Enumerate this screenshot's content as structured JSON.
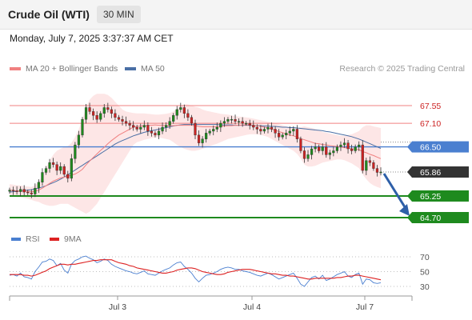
{
  "header": {
    "instrument": "Crude Oil (WTI)",
    "interval": "30 MIN",
    "timestamp": "Monday, July 7, 2025 3:37:37 AM CET"
  },
  "legend": {
    "ma20": "MA 20 + Bollinger Bands",
    "ma50": "MA 50",
    "copyright": "Research © 2025 Trading Central"
  },
  "rsi_legend": {
    "rsi": "RSI",
    "ma": "9MA"
  },
  "colors": {
    "ma20": "#f08080",
    "bollinger_fill": "#fde2e2",
    "ma50": "#4a6fa5",
    "resistance": "#f08080",
    "pivot": "#4a7fd0",
    "support": "#1e8a1e",
    "current": "#333333",
    "up_candle": "#1e8a1e",
    "down_candle": "#cc2222",
    "arrow": "#2e5fa8",
    "rsi": "#4a7fd0",
    "rsi_ma": "#dd2222"
  },
  "chart_data": [
    {
      "type": "candlestick",
      "title": "Crude Oil (WTI)",
      "x_tick_labels": [
        "Jul 3",
        "Jul 4",
        "Jul 7"
      ],
      "ylim": [
        64.5,
        67.8
      ],
      "levels": [
        {
          "value": 67.55,
          "label": "67.55",
          "kind": "resistance"
        },
        {
          "value": 67.1,
          "label": "67.10",
          "kind": "resistance"
        },
        {
          "value": 66.5,
          "label": "66.50",
          "kind": "pivot"
        },
        {
          "value": 65.86,
          "label": "65.86",
          "kind": "current"
        },
        {
          "value": 65.25,
          "label": "65.25",
          "kind": "support"
        },
        {
          "value": 64.7,
          "label": "64.70",
          "kind": "support"
        }
      ],
      "close": [
        65.4,
        65.38,
        65.36,
        65.42,
        65.35,
        65.33,
        65.3,
        65.45,
        65.6,
        65.85,
        65.95,
        66.1,
        66.05,
        65.9,
        66.0,
        65.8,
        65.7,
        66.2,
        66.55,
        66.8,
        67.2,
        67.5,
        67.4,
        67.3,
        67.2,
        67.35,
        67.5,
        67.45,
        67.35,
        67.25,
        67.2,
        67.15,
        67.1,
        67.05,
        67.0,
        66.95,
        67.0,
        67.05,
        66.9,
        66.85,
        66.8,
        66.9,
        67.0,
        67.05,
        67.15,
        67.3,
        67.45,
        67.5,
        67.35,
        67.25,
        67.1,
        66.8,
        66.6,
        66.7,
        66.85,
        66.9,
        66.95,
        67.0,
        67.1,
        67.15,
        67.2,
        67.2,
        67.15,
        67.15,
        67.1,
        67.1,
        67.05,
        67.0,
        66.95,
        66.9,
        66.95,
        67.0,
        66.95,
        66.85,
        66.75,
        66.8,
        66.85,
        66.9,
        66.95,
        66.7,
        66.4,
        66.2,
        66.3,
        66.45,
        66.5,
        66.4,
        66.5,
        66.3,
        66.35,
        66.4,
        66.5,
        66.55,
        66.6,
        66.45,
        66.4,
        66.5,
        66.55,
        65.9,
        66.15,
        66.1,
        65.95,
        65.85,
        65.86
      ],
      "ma20": [
        65.4,
        65.39,
        65.38,
        65.38,
        65.37,
        65.37,
        65.36,
        65.37,
        65.4,
        65.45,
        65.51,
        65.57,
        65.63,
        65.67,
        65.71,
        65.73,
        65.75,
        65.78,
        65.81,
        65.86,
        65.93,
        66.04,
        66.14,
        66.23,
        66.32,
        66.41,
        66.49,
        66.58,
        66.66,
        66.73,
        66.8,
        66.85,
        66.9,
        66.95,
        67.0,
        67.02,
        67.03,
        67.04,
        67.05,
        67.05,
        67.06,
        67.05,
        67.05,
        67.04,
        67.04,
        67.04,
        67.05,
        67.05,
        67.05,
        67.05,
        67.05,
        67.04,
        67.02,
        67.01,
        67.01,
        67.01,
        67.01,
        67.01,
        67.02,
        67.03,
        67.04,
        67.04,
        67.05,
        67.05,
        67.06,
        67.06,
        67.06,
        67.05,
        67.04,
        67.02,
        67.0,
        66.98,
        66.95,
        66.92,
        66.89,
        66.86,
        66.83,
        66.8,
        66.78,
        66.75,
        66.71,
        66.68,
        66.65,
        66.62,
        66.59,
        66.58,
        66.56,
        66.55,
        66.53,
        66.52,
        66.51,
        66.5,
        66.48,
        66.47,
        66.45,
        66.44,
        66.43,
        66.38,
        66.35,
        66.31,
        66.28,
        66.24,
        66.2
      ],
      "bollinger_upper": [
        65.55,
        65.54,
        65.52,
        65.52,
        65.5,
        65.49,
        65.48,
        65.52,
        65.6,
        65.75,
        65.95,
        66.15,
        66.3,
        66.4,
        66.45,
        66.5,
        66.52,
        66.6,
        66.75,
        66.95,
        67.2,
        67.5,
        67.7,
        67.8,
        67.85,
        67.85,
        67.85,
        67.82,
        67.75,
        67.65,
        67.55,
        67.45,
        67.4,
        67.38,
        67.36,
        67.35,
        67.35,
        67.35,
        67.34,
        67.33,
        67.32,
        67.32,
        67.33,
        67.34,
        67.36,
        67.4,
        67.48,
        67.55,
        67.58,
        67.58,
        67.55,
        67.52,
        67.5,
        67.45,
        67.42,
        67.4,
        67.38,
        67.36,
        67.34,
        67.33,
        67.32,
        67.3,
        67.28,
        67.27,
        67.26,
        67.25,
        67.24,
        67.22,
        67.2,
        67.18,
        67.16,
        67.14,
        67.12,
        67.1,
        67.08,
        67.05,
        67.02,
        67.0,
        66.98,
        66.98,
        67.0,
        67.02,
        67.0,
        66.98,
        66.96,
        66.92,
        66.88,
        66.86,
        66.84,
        66.82,
        66.8,
        66.78,
        66.78,
        66.8,
        66.82,
        66.86,
        66.9,
        67.0,
        67.05,
        67.05,
        67.02,
        67.0,
        66.98
      ],
      "bollinger_lower": [
        65.25,
        65.24,
        65.22,
        65.22,
        65.2,
        65.18,
        65.15,
        65.12,
        65.1,
        65.05,
        65.02,
        65.0,
        65.0,
        65.02,
        65.05,
        65.05,
        65.05,
        65.0,
        64.95,
        64.9,
        64.85,
        64.8,
        64.85,
        64.95,
        65.05,
        65.2,
        65.35,
        65.5,
        65.65,
        65.8,
        65.95,
        66.1,
        66.25,
        66.4,
        66.55,
        66.62,
        66.65,
        66.68,
        66.7,
        66.72,
        66.74,
        66.74,
        66.72,
        66.7,
        66.68,
        66.62,
        66.55,
        66.5,
        66.45,
        66.42,
        66.4,
        66.4,
        66.42,
        66.45,
        66.48,
        66.52,
        66.55,
        66.58,
        66.62,
        66.66,
        66.7,
        66.72,
        66.74,
        66.76,
        66.78,
        66.8,
        66.82,
        66.82,
        66.82,
        66.8,
        66.78,
        66.75,
        66.7,
        66.65,
        66.6,
        66.55,
        66.5,
        66.45,
        66.4,
        66.32,
        66.2,
        66.05,
        66.0,
        66.0,
        66.02,
        66.06,
        66.1,
        66.12,
        66.14,
        66.16,
        66.18,
        66.18,
        66.16,
        66.12,
        66.08,
        66.02,
        65.96,
        65.8,
        65.68,
        65.58,
        65.52,
        65.48,
        65.45
      ],
      "ma50": [
        65.35,
        65.36,
        65.37,
        65.38,
        65.39,
        65.4,
        65.41,
        65.43,
        65.45,
        65.48,
        65.51,
        65.55,
        65.59,
        65.63,
        65.68,
        65.73,
        65.79,
        65.85,
        65.91,
        65.97,
        66.03,
        66.09,
        66.15,
        66.21,
        66.27,
        66.33,
        66.39,
        66.45,
        66.51,
        66.57,
        66.62,
        66.66,
        66.7,
        66.74,
        66.78,
        66.81,
        66.84,
        66.87,
        66.89,
        66.91,
        66.93,
        66.95,
        66.97,
        66.99,
        67.01,
        67.03,
        67.05,
        67.06,
        67.07,
        67.07,
        67.07,
        67.07,
        67.07,
        67.07,
        67.07,
        67.07,
        67.07,
        67.07,
        67.06,
        67.06,
        67.06,
        67.06,
        67.05,
        67.05,
        67.05,
        67.05,
        67.05,
        67.04,
        67.04,
        67.04,
        67.03,
        67.03,
        67.02,
        67.02,
        67.01,
        67.0,
        67.0,
        66.99,
        66.99,
        66.98,
        66.97,
        66.96,
        66.95,
        66.94,
        66.93,
        66.92,
        66.91,
        66.89,
        66.88,
        66.86,
        66.84,
        66.82,
        66.8,
        66.78,
        66.76,
        66.73,
        66.7,
        66.66,
        66.62,
        66.58,
        66.54,
        66.5,
        66.46
      ]
    },
    {
      "type": "line",
      "title": "RSI",
      "y_tick_labels": [
        "70",
        "50",
        "30"
      ],
      "ylim": [
        20,
        80
      ],
      "reference_lines": [
        70,
        50,
        30
      ],
      "series": [
        {
          "name": "RSI",
          "values": [
            45,
            46,
            44,
            48,
            43,
            42,
            40,
            50,
            56,
            63,
            64,
            67,
            65,
            58,
            61,
            52,
            48,
            60,
            65,
            67,
            70,
            71,
            68,
            66,
            62,
            64,
            67,
            65,
            60,
            57,
            55,
            53,
            51,
            50,
            48,
            47,
            49,
            51,
            47,
            46,
            45,
            48,
            51,
            53,
            55,
            59,
            62,
            63,
            57,
            53,
            48,
            41,
            36,
            41,
            45,
            46,
            48,
            50,
            53,
            55,
            56,
            55,
            53,
            53,
            51,
            50,
            49,
            47,
            45,
            44,
            46,
            48,
            46,
            43,
            40,
            42,
            44,
            46,
            48,
            41,
            33,
            30,
            36,
            42,
            44,
            40,
            45,
            38,
            40,
            43,
            46,
            48,
            50,
            44,
            42,
            46,
            48,
            33,
            40,
            39,
            35,
            34,
            35
          ]
        },
        {
          "name": "9MA",
          "values": [
            46,
            46,
            46,
            46,
            45,
            45,
            44,
            45,
            47,
            49,
            51,
            54,
            56,
            58,
            60,
            60,
            59,
            60,
            60,
            61,
            62,
            63,
            64,
            65,
            65,
            66,
            66,
            66,
            66,
            64,
            62,
            61,
            60,
            58,
            57,
            55,
            54,
            53,
            52,
            51,
            50,
            49,
            48,
            48,
            49,
            50,
            52,
            53,
            54,
            55,
            55,
            54,
            52,
            50,
            49,
            48,
            47,
            46,
            46,
            47,
            49,
            50,
            51,
            52,
            53,
            53,
            53,
            52,
            51,
            50,
            49,
            48,
            47,
            47,
            46,
            45,
            45,
            44,
            44,
            43,
            42,
            41,
            40,
            40,
            41,
            41,
            41,
            41,
            41,
            41,
            42,
            42,
            43,
            44,
            44,
            45,
            45,
            44,
            43,
            42,
            41,
            40,
            39
          ]
        }
      ]
    }
  ]
}
